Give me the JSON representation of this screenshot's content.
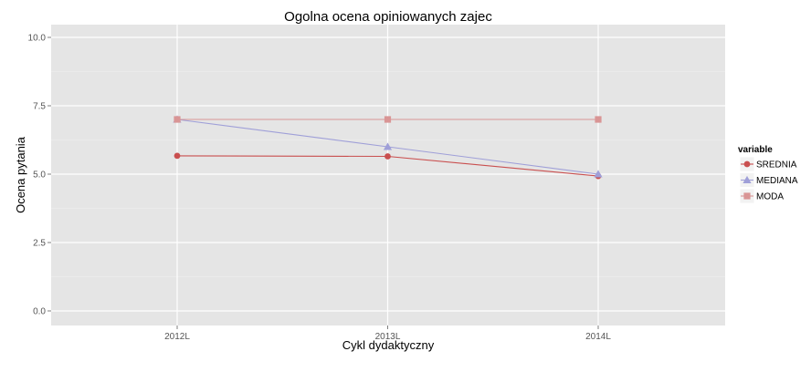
{
  "chart_data": {
    "type": "line",
    "title": "Ogolna ocena opiniowanych zajec",
    "xlabel": "Cykl dydaktyczny",
    "ylabel": "Ocena pytania",
    "categories": [
      "2012L",
      "2013L",
      "2014L"
    ],
    "ylim": [
      0,
      10
    ],
    "yticks": [
      0,
      2.5,
      5,
      7.5,
      10
    ],
    "ytick_labels": [
      "0.0",
      "2.5",
      "5.0",
      "7.5",
      "10.0"
    ],
    "grid": true,
    "legend_title": "variable",
    "legend_position": "right",
    "series": [
      {
        "name": "SREDNIA",
        "values": [
          5.67,
          5.65,
          4.93
        ],
        "color": "#c94f4f",
        "marker": "circle"
      },
      {
        "name": "MEDIANA",
        "values": [
          7.0,
          6.0,
          5.0
        ],
        "color": "#9f9fd8",
        "marker": "triangle"
      },
      {
        "name": "MODA",
        "values": [
          7.0,
          7.0,
          7.0
        ],
        "color": "#d99595",
        "marker": "square"
      }
    ]
  }
}
